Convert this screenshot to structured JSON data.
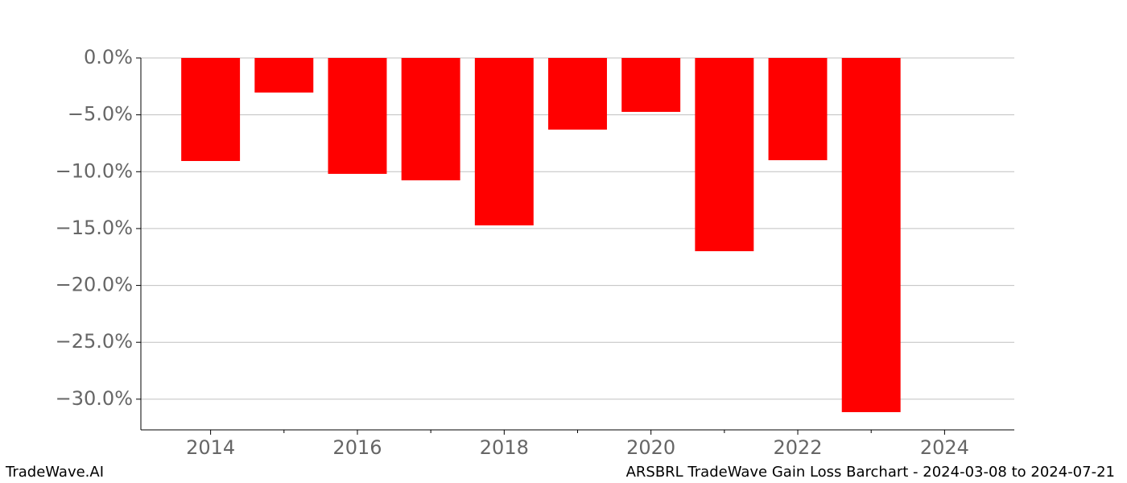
{
  "chart_data": {
    "type": "bar",
    "x": [
      2014,
      2015,
      2016,
      2017,
      2018,
      2019,
      2020,
      2021,
      2022,
      2023
    ],
    "values": [
      -9.06,
      -3.04,
      -10.19,
      -10.76,
      -14.72,
      -6.3,
      -4.74,
      -16.99,
      -8.99,
      -31.14
    ],
    "color": "#ff0000",
    "xlim": [
      2013.05,
      2024.95
    ],
    "xticks": [
      2014,
      2016,
      2018,
      2020,
      2022,
      2024
    ],
    "minor_xticks": [
      2015,
      2017,
      2019,
      2021,
      2023
    ],
    "ylim": [
      -32.7,
      0
    ],
    "yticks": [
      {
        "value": 0,
        "label": "0.0%"
      },
      {
        "value": -5,
        "label": "−5.0%"
      },
      {
        "value": -10,
        "label": "−10.0%"
      },
      {
        "value": -15,
        "label": "−15.0%"
      },
      {
        "value": -20,
        "label": "−20.0%"
      },
      {
        "value": -25,
        "label": "−25.0%"
      },
      {
        "value": -30,
        "label": "−30.0%"
      }
    ],
    "grid": true,
    "footer_left": "TradeWave.AI",
    "footer_right": "ARSBRL TradeWave Gain Loss Barchart - 2024-03-08 to 2024-07-21"
  }
}
